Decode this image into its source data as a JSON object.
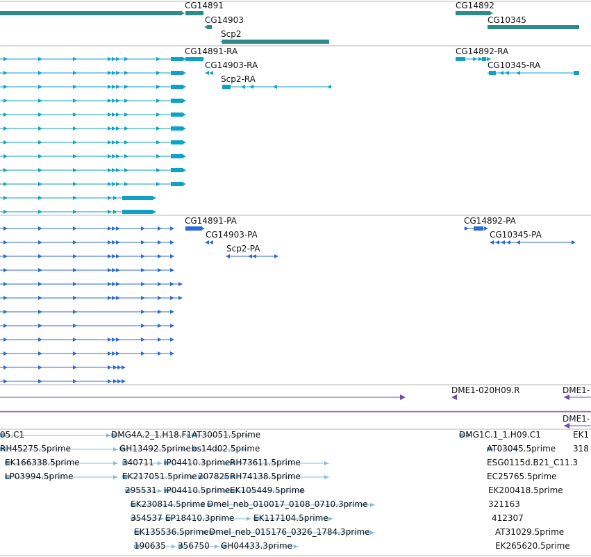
{
  "colors": {
    "gene": "#2f8a8a",
    "transcript_ra": "#0fa2c2",
    "transcript_pa": "#2b6bd6",
    "bac": "#6d4aa8",
    "est": "#86b8dc",
    "divider": "#b5b5b5",
    "background": "#ffffff"
  },
  "tracks": [
    {
      "id": "genes",
      "features": [
        {
          "label": "CG14891"
        },
        {
          "label": "CG14903"
        },
        {
          "label": "Scp2"
        },
        {
          "label": "CG14892"
        },
        {
          "label": "CG10345"
        }
      ]
    },
    {
      "id": "transcripts-ra",
      "features": [
        {
          "label": "CG14891-RA"
        },
        {
          "label": "CG14903-RA"
        },
        {
          "label": "Scp2-RA"
        },
        {
          "label": "CG14892-RA"
        },
        {
          "label": "CG10345-RA"
        }
      ]
    },
    {
      "id": "transcripts-pa",
      "features": [
        {
          "label": "CG14891-PA"
        },
        {
          "label": "CG14903-PA"
        },
        {
          "label": "Scp2-PA"
        },
        {
          "label": "CG14892-PA"
        },
        {
          "label": "CG10345-PA"
        }
      ]
    },
    {
      "id": "bac-ends",
      "features": [
        {
          "label": "DME1-020H09.R"
        },
        {
          "label": "DME1-"
        }
      ]
    },
    {
      "id": "bac-ends-2",
      "features": [
        {
          "label": "DME1-"
        }
      ]
    },
    {
      "id": "est",
      "features": [
        {
          "label": "05.C1"
        },
        {
          "label": "DMG4A.2_1.H18.F1"
        },
        {
          "label": "AT30051.5prime"
        },
        {
          "label": "DMG1C.1_1.H09.C1"
        },
        {
          "label": "EK1"
        },
        {
          "label": "RH45275.5prime"
        },
        {
          "label": "GH13492.5prime"
        },
        {
          "label": "bs14d02.5prime"
        },
        {
          "label": "AT03045.5prime"
        },
        {
          "label": "318"
        },
        {
          "label": "EK166338.5prime"
        },
        {
          "label": "340711"
        },
        {
          "label": "IP04410.3prime"
        },
        {
          "label": "RH73611.5prime"
        },
        {
          "label": "ESG0115d.B21_C11.3"
        },
        {
          "label": "LP03994.5prime"
        },
        {
          "label": "EK217051.5prime"
        },
        {
          "label": "207825"
        },
        {
          "label": "RH74138.5prime"
        },
        {
          "label": "EC25765.5prime"
        },
        {
          "label": "295531"
        },
        {
          "label": "IP04410.5prime"
        },
        {
          "label": "EK105449.5prime"
        },
        {
          "label": "EK200418.5prime"
        },
        {
          "label": "EK230814.5prime"
        },
        {
          "label": "Dmel_neb_010017_0108_0710.3prime"
        },
        {
          "label": "321163"
        },
        {
          "label": "354537"
        },
        {
          "label": "EP18410.3prime"
        },
        {
          "label": "EK117104.5prime"
        },
        {
          "label": "412307"
        },
        {
          "label": "EK135536.5prime"
        },
        {
          "label": "Dmel_neb_015176_0326_1784.3prime"
        },
        {
          "label": "AT31029.5prime"
        },
        {
          "label": "190635"
        },
        {
          "label": "356750"
        },
        {
          "label": "GH04433.3prime"
        },
        {
          "label": "EK265620.5prime"
        }
      ]
    }
  ]
}
